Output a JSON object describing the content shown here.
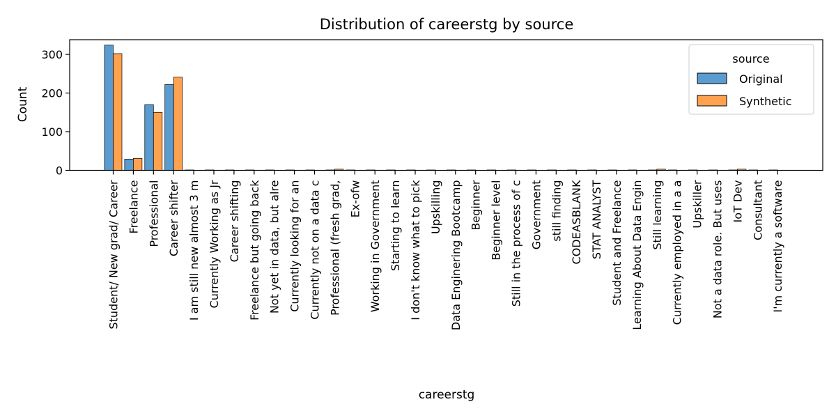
{
  "chart_data": {
    "type": "bar",
    "title": "Distribution of careerstg by source",
    "xlabel": "careerstg",
    "ylabel": "Count",
    "ylim": [
      0,
      338
    ],
    "yticks": [
      0,
      100,
      200,
      300
    ],
    "grid": false,
    "legend": {
      "title": "source",
      "placement": "top-right"
    },
    "categories": [
      "Student/ New grad/ Career",
      "Freelance",
      "Professional",
      "Career shifter",
      "I am still new almost 3 m",
      "Currently Working as  Jr",
      "Career shifting",
      "Freelance but going back",
      "Not yet in data, but alre",
      "Currently looking for an",
      "Currently not on a data c",
      "Professional (fresh grad,",
      "Ex-ofw",
      "Working in Government",
      "Starting to learn",
      "I don't know what to pick",
      "Upskilling",
      "Data Enginering Bootcamp",
      "Beginner",
      "Beginner level",
      "Still in the process of c",
      "Government",
      "still finding",
      "CODEASBLANK",
      "STAT ANALYST",
      "Student and Freelance",
      "Learning About Data Engin",
      "Still learning",
      "Currently employed in a a",
      "Upskiller",
      "Not a data role. But uses",
      "IoT Dev",
      "Consultant",
      "I'm currently a software"
    ],
    "series": [
      {
        "name": "Original",
        "color": "#5a9bd0",
        "values": [
          324,
          29,
          170,
          222,
          1,
          1,
          1,
          1,
          1,
          1,
          1,
          1,
          1,
          1,
          1,
          1,
          1,
          1,
          1,
          1,
          1,
          1,
          1,
          1,
          1,
          1,
          1,
          1,
          1,
          1,
          1,
          1,
          1,
          1
        ]
      },
      {
        "name": "Synthetic",
        "color": "#ffa24f",
        "values": [
          302,
          31,
          150,
          241,
          0,
          0,
          0,
          0,
          0,
          0,
          0,
          3,
          0,
          0,
          0,
          0,
          0,
          0,
          0,
          0,
          0,
          0,
          0,
          0,
          0,
          0,
          0,
          3,
          0,
          0,
          0,
          3,
          0,
          0
        ]
      }
    ]
  }
}
